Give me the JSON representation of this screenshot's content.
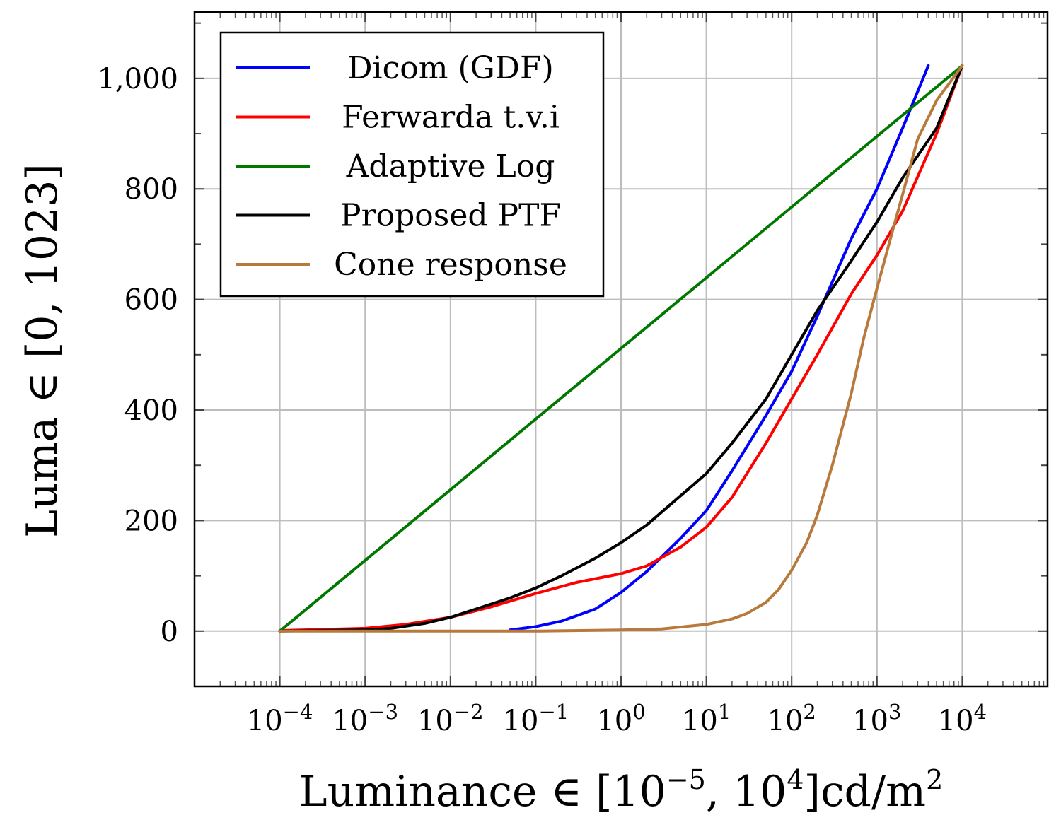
{
  "chart_data": {
    "type": "line",
    "x_scale": "log",
    "xlabel_main": "Luminance ∈ [10",
    "xlabel_sup1": "−5",
    "xlabel_mid": ", 10",
    "xlabel_sup2": "4",
    "xlabel_unit": "]cd/m",
    "xlabel_sup3": "2",
    "ylabel": "Luma ∈ [0, 1023]",
    "xlim": [
      1e-05,
      100000
    ],
    "ylim": [
      -100,
      1120
    ],
    "x_ticks": [
      {
        "exp": -4,
        "base": "10",
        "sup": "−4"
      },
      {
        "exp": -3,
        "base": "10",
        "sup": "−3"
      },
      {
        "exp": -2,
        "base": "10",
        "sup": "−2"
      },
      {
        "exp": -1,
        "base": "10",
        "sup": "−1"
      },
      {
        "exp": 0,
        "base": "10",
        "sup": "0"
      },
      {
        "exp": 1,
        "base": "10",
        "sup": "1"
      },
      {
        "exp": 2,
        "base": "10",
        "sup": "2"
      },
      {
        "exp": 3,
        "base": "10",
        "sup": "3"
      },
      {
        "exp": 4,
        "base": "10",
        "sup": "4"
      }
    ],
    "y_ticks": [
      {
        "value": 0,
        "label": "0"
      },
      {
        "value": 200,
        "label": "200"
      },
      {
        "value": 400,
        "label": "400"
      },
      {
        "value": 600,
        "label": "600"
      },
      {
        "value": 800,
        "label": "800"
      },
      {
        "value": 1000,
        "label": "1,000"
      }
    ],
    "grid": true,
    "legend_position": "top-left",
    "series": [
      {
        "name": "Dicom (GDF)",
        "color": "#0000ff",
        "x": [
          0.05,
          0.1,
          0.2,
          0.5,
          1,
          2,
          5,
          10,
          20,
          50,
          100,
          200,
          500,
          1000,
          2000,
          4000
        ],
        "y": [
          2,
          8,
          18,
          40,
          70,
          108,
          168,
          218,
          290,
          390,
          470,
          570,
          710,
          800,
          910,
          1023
        ]
      },
      {
        "name": "Ferwarda t.v.i",
        "color": "#ff0000",
        "x": [
          0.0001,
          0.001,
          0.003,
          0.01,
          0.03,
          0.1,
          0.3,
          1,
          2,
          5,
          10,
          20,
          50,
          100,
          200,
          500,
          1000,
          2000,
          5000,
          10000
        ],
        "y": [
          1,
          5,
          12,
          25,
          44,
          68,
          88,
          104,
          118,
          152,
          188,
          242,
          340,
          420,
          500,
          610,
          680,
          760,
          900,
          1023
        ]
      },
      {
        "name": "Adaptive Log",
        "color": "#007800",
        "x": [
          0.0001,
          10000
        ],
        "y": [
          0,
          1023
        ]
      },
      {
        "name": "Proposed PTF",
        "color": "#000000",
        "x": [
          0.0001,
          0.001,
          0.002,
          0.005,
          0.01,
          0.02,
          0.05,
          0.1,
          0.2,
          0.5,
          1,
          2,
          5,
          10,
          20,
          50,
          100,
          200,
          500,
          1000,
          2000,
          5000,
          10000
        ],
        "y": [
          0,
          2,
          5,
          14,
          25,
          40,
          60,
          78,
          100,
          132,
          160,
          192,
          245,
          285,
          340,
          420,
          500,
          580,
          670,
          740,
          820,
          910,
          1023
        ]
      },
      {
        "name": "Cone response",
        "color": "#b87a3c",
        "x": [
          0.0001,
          0.01,
          0.1,
          1,
          3,
          10,
          20,
          30,
          50,
          70,
          100,
          150,
          200,
          300,
          500,
          700,
          1000,
          1500,
          2000,
          3000,
          5000,
          10000
        ],
        "y": [
          0,
          0,
          0,
          2,
          4,
          12,
          22,
          32,
          52,
          75,
          110,
          160,
          210,
          300,
          430,
          530,
          620,
          720,
          790,
          890,
          960,
          1023
        ]
      }
    ]
  }
}
